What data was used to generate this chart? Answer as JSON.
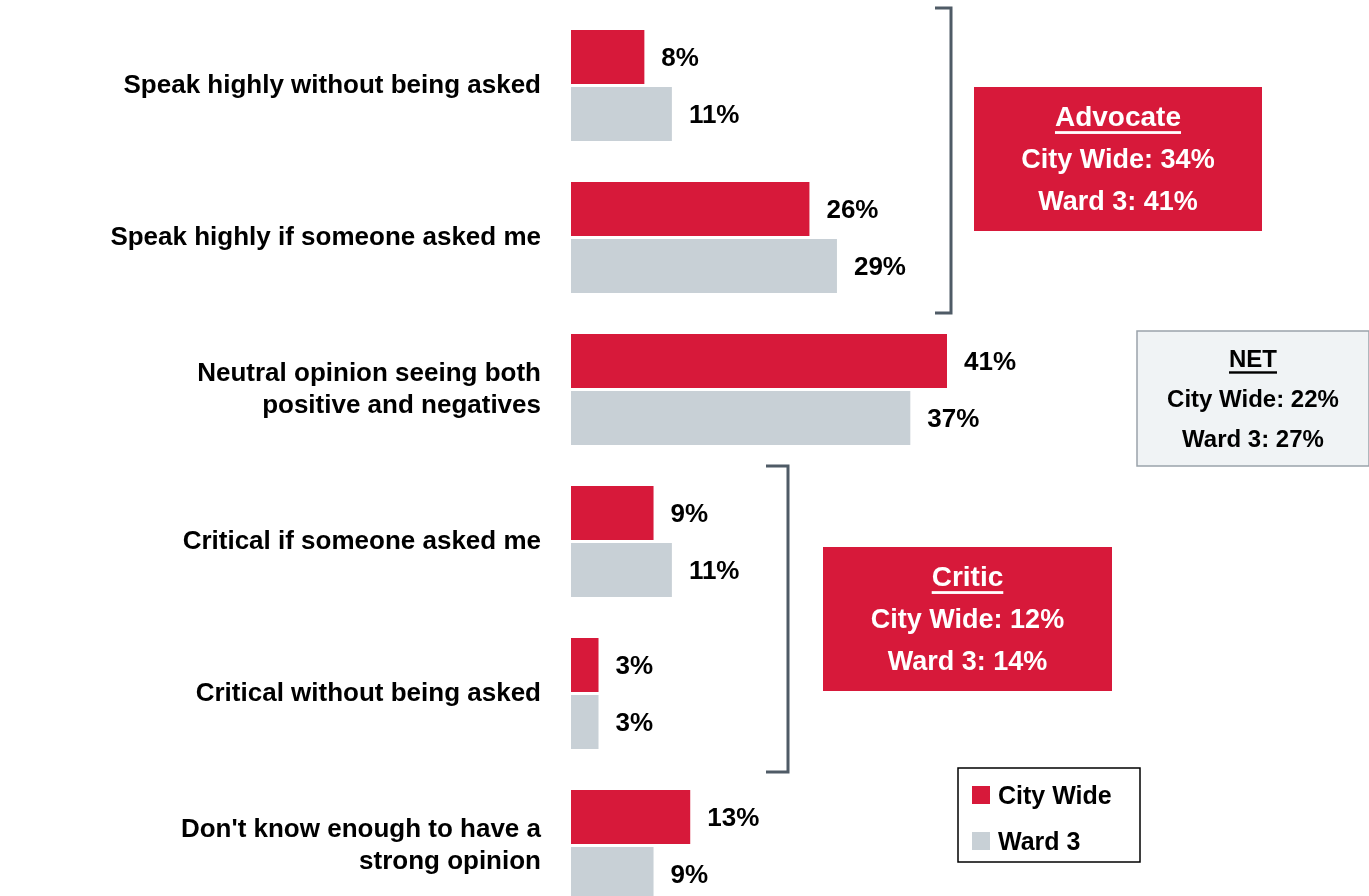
{
  "chart_data": {
    "type": "bar",
    "orientation": "horizontal",
    "categories": [
      "Speak highly without being asked",
      "Speak highly if someone asked me",
      "Neutral opinion seeing both positive and negatives",
      "Critical if someone asked me",
      "Critical without being asked",
      "Don't know enough to have a strong opinion"
    ],
    "series": [
      {
        "name": "City Wide",
        "color": "#d7193a",
        "values": [
          8,
          26,
          41,
          9,
          3,
          13
        ],
        "value_labels": [
          "8%",
          "26%",
          "41%",
          "9%",
          "3%",
          "13%"
        ]
      },
      {
        "name": "Ward 3",
        "color": "#c8d0d6",
        "values": [
          11,
          29,
          37,
          11,
          3,
          9
        ],
        "value_labels": [
          "11%",
          "29%",
          "37%",
          "11%",
          "3%",
          "9%"
        ]
      }
    ],
    "legend": "bottom right",
    "annotations": [
      "Advocate",
      "City Wide: 34%",
      "Ward 3: 41%",
      "NET",
      "City Wide: 22%",
      "Ward 3: 27%",
      "Critic",
      "City Wide: 12%",
      "Ward 3: 14%"
    ]
  }
}
